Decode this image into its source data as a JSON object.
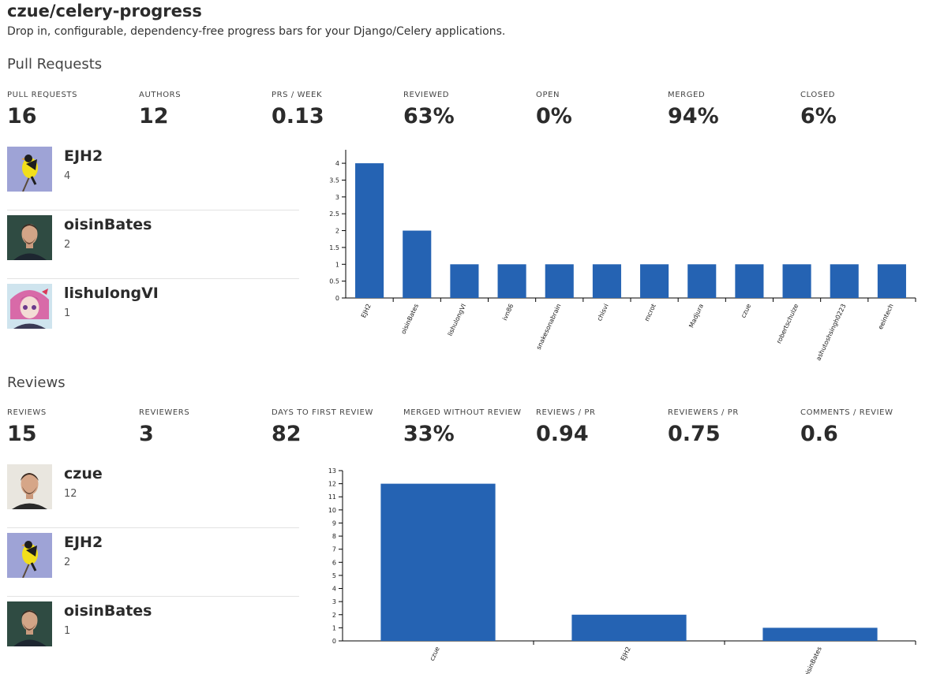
{
  "repo": {
    "title": "czue/celery-progress",
    "description": "Drop in, configurable, dependency-free progress bars for your Django/Celery applications."
  },
  "pull_requests": {
    "section_title": "Pull Requests",
    "stats": [
      {
        "label": "PULL REQUESTS",
        "value": "16"
      },
      {
        "label": "AUTHORS",
        "value": "12"
      },
      {
        "label": "PRS / WEEK",
        "value": "0.13"
      },
      {
        "label": "REVIEWED",
        "value": "63%"
      },
      {
        "label": "OPEN",
        "value": "0%"
      },
      {
        "label": "MERGED",
        "value": "94%"
      },
      {
        "label": "CLOSED",
        "value": "6%"
      }
    ],
    "top_authors": [
      {
        "name": "EJH2",
        "count": "4",
        "avatar": "goldfinch-avatar"
      },
      {
        "name": "oisinBates",
        "count": "2",
        "avatar": "portrait-avatar"
      },
      {
        "name": "lishulongVI",
        "count": "1",
        "avatar": "anime-avatar"
      }
    ]
  },
  "reviews": {
    "section_title": "Reviews",
    "stats": [
      {
        "label": "REVIEWS",
        "value": "15"
      },
      {
        "label": "REVIEWERS",
        "value": "3"
      },
      {
        "label": "DAYS TO FIRST REVIEW",
        "value": "82"
      },
      {
        "label": "MERGED WITHOUT REVIEW",
        "value": "33%"
      },
      {
        "label": "REVIEWS / PR",
        "value": "0.94"
      },
      {
        "label": "REVIEWERS / PR",
        "value": "0.75"
      },
      {
        "label": "COMMENTS / REVIEW",
        "value": "0.6"
      }
    ],
    "top_reviewers": [
      {
        "name": "czue",
        "count": "12",
        "avatar": "portrait-avatar"
      },
      {
        "name": "EJH2",
        "count": "2",
        "avatar": "goldfinch-avatar"
      },
      {
        "name": "oisinBates",
        "count": "1",
        "avatar": "portrait-avatar"
      }
    ]
  },
  "chart_data": [
    {
      "type": "bar",
      "title": "",
      "xlabel": "",
      "ylabel": "",
      "categories": [
        "EJH2",
        "oisinBates",
        "lishulongVI",
        "ivn86",
        "snakesonabrain",
        "chisvi",
        "mcrot",
        "Madjura",
        "czue",
        "robertschulze",
        "ashutoshsingh0223",
        "eeintech"
      ],
      "values": [
        4,
        2,
        1,
        1,
        1,
        1,
        1,
        1,
        1,
        1,
        1,
        1
      ],
      "yticks": [
        "0",
        "0.5",
        "1",
        "1.5",
        "2",
        "2.5",
        "3",
        "3.5",
        "4"
      ],
      "ylim": [
        0,
        4.4
      ],
      "bar_color": "#2563b3",
      "grid": false
    },
    {
      "type": "bar",
      "title": "",
      "xlabel": "",
      "ylabel": "",
      "categories": [
        "czue",
        "EJH2",
        "oisinBates"
      ],
      "values": [
        12,
        2,
        1
      ],
      "yticks": [
        "0",
        "1",
        "2",
        "3",
        "4",
        "5",
        "6",
        "7",
        "8",
        "9",
        "10",
        "11",
        "12",
        "13"
      ],
      "ylim": [
        0,
        13
      ],
      "bar_color": "#2563b3",
      "grid": false
    }
  ]
}
